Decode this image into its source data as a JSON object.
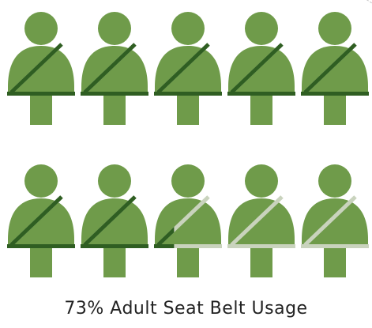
{
  "chart_data": {
    "type": "pictograph",
    "title": "73% Adult Seat Belt Usage",
    "value_percent": 73,
    "total_icons": 10,
    "icons_per_row": 5,
    "icon": "person-with-seat-belt-icon",
    "colors": {
      "body": "#6f9b4a",
      "belt_used": "#2f5e22",
      "belt_unused": "#c9d3bd"
    }
  }
}
